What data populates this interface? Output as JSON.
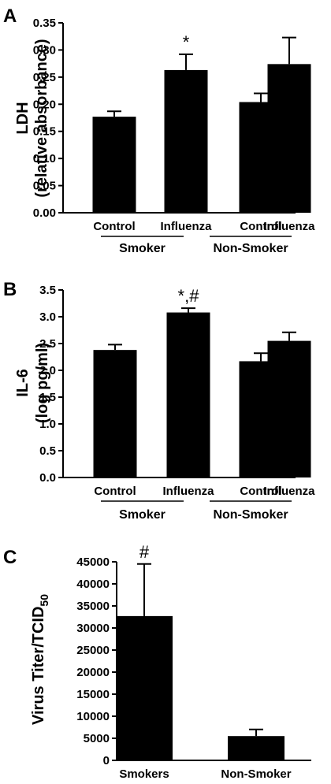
{
  "chart_data": [
    {
      "panel": "A",
      "type": "bar",
      "ylabel_line1": "LDH",
      "ylabel_line2": "(relative absorbance)",
      "yticks": [
        "0.00",
        "0.05",
        "0.10",
        "0.15",
        "0.20",
        "0.25",
        "0.30",
        "0.35"
      ],
      "ylim": [
        0,
        0.35
      ],
      "grid": false,
      "categories": [
        "Control",
        "Influenza",
        "Control",
        "Influenza"
      ],
      "groups": [
        "Smoker",
        "Non-Smoker"
      ],
      "values": [
        0.177,
        0.263,
        0.204,
        0.274
      ],
      "errors": [
        0.01,
        0.029,
        0.016,
        0.049
      ],
      "annotations": [
        "",
        "*",
        "",
        ""
      ]
    },
    {
      "panel": "B",
      "type": "bar",
      "ylabel_line1": "IL-6",
      "ylabel_line2": "(log pg/ml)",
      "yticks": [
        "0.0",
        "0.5",
        "1.0",
        "1.5",
        "2.0",
        "2.5",
        "3.0",
        "3.5"
      ],
      "ylim": [
        0,
        3.5
      ],
      "grid": false,
      "categories": [
        "Control",
        "Influenza",
        "Control",
        "Influenza"
      ],
      "groups": [
        "Smoker",
        "Non-Smoker"
      ],
      "values": [
        2.38,
        3.08,
        2.17,
        2.55
      ],
      "errors": [
        0.1,
        0.08,
        0.15,
        0.16
      ],
      "annotations": [
        "",
        "*,#",
        "",
        ""
      ]
    },
    {
      "panel": "C",
      "type": "bar",
      "ylabel_main": "Virus Titer/TCID",
      "ylabel_sub": "50",
      "yticks": [
        "0",
        "5000",
        "10000",
        "15000",
        "20000",
        "25000",
        "30000",
        "35000",
        "40000",
        "45000"
      ],
      "ylim": [
        0,
        45000
      ],
      "grid": false,
      "categories": [
        "Smokers",
        "Non-Smoker"
      ],
      "values": [
        32700,
        5500
      ],
      "errors": [
        11800,
        1500
      ],
      "annotations": [
        "#",
        ""
      ]
    }
  ]
}
